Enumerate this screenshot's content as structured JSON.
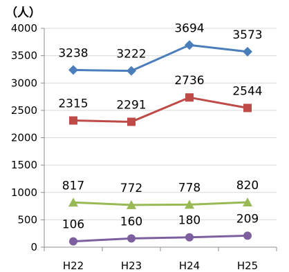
{
  "chart_data": {
    "type": "line",
    "title": "",
    "xlabel": "",
    "ylabel": "（人）",
    "categories": [
      "H22",
      "H23",
      "H24",
      "H25"
    ],
    "ylim": [
      0,
      4000
    ],
    "yticks": [
      0,
      500,
      1000,
      1500,
      2000,
      2500,
      3000,
      3500,
      4000
    ],
    "grid": true,
    "legend": "none",
    "series": [
      {
        "values": [
          3238,
          3222,
          3694,
          3573
        ],
        "color": "#4a7ebb",
        "marker": "diamond"
      },
      {
        "values": [
          2315,
          2291,
          2736,
          2544
        ],
        "color": "#be4b48",
        "marker": "square"
      },
      {
        "values": [
          817,
          772,
          778,
          820
        ],
        "color": "#98b954",
        "marker": "triangle"
      },
      {
        "values": [
          106,
          160,
          180,
          209
        ],
        "color": "#7d5fa0",
        "marker": "circle"
      }
    ]
  }
}
